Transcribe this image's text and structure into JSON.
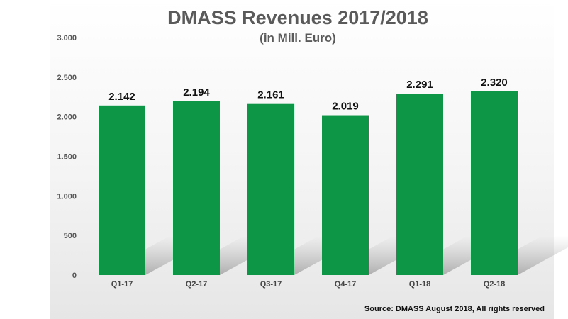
{
  "chart_data": {
    "type": "bar",
    "title": "DMASS Revenues 2017/2018",
    "subtitle": "(in Mill. Euro)",
    "categories": [
      "Q1-17",
      "Q2-17",
      "Q3-17",
      "Q4-17",
      "Q1-18",
      "Q2-18"
    ],
    "values": [
      2142,
      2194,
      2161,
      2019,
      2291,
      2320
    ],
    "value_labels": [
      "2.142",
      "2.194",
      "2.161",
      "2.019",
      "2.291",
      "2.320"
    ],
    "ylim": [
      0,
      3000
    ],
    "yticks": [
      0,
      500,
      1000,
      1500,
      2000,
      2500,
      3000
    ],
    "ytick_labels": [
      "0",
      "500",
      "1.000",
      "1.500",
      "2.000",
      "2.500",
      "3.000"
    ],
    "xlabel": "",
    "ylabel": "",
    "grid": false,
    "bar_color": "#0e9647",
    "source": "Source: DMASS August 2018, All rights reserved"
  }
}
